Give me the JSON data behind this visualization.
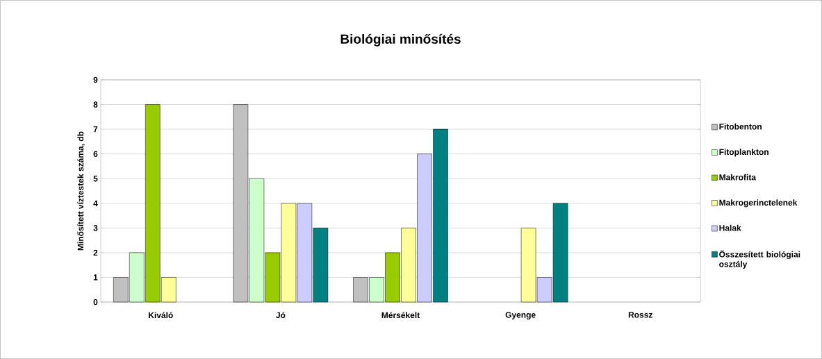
{
  "chart_data": {
    "type": "bar",
    "title": "Biológiai minősítés",
    "ylabel": "Minősített víztestek száma, db",
    "categories": [
      "Kiváló",
      "Jó",
      "Mérsékelt",
      "Gyenge",
      "Rossz"
    ],
    "series": [
      {
        "name": "Fitobenton",
        "color": "#c0c0c0",
        "values": [
          1,
          8,
          1,
          null,
          null
        ]
      },
      {
        "name": "Fitoplankton",
        "color": "#ccffcc",
        "values": [
          2,
          5,
          1,
          null,
          null
        ]
      },
      {
        "name": "Makrofita",
        "color": "#99cc00",
        "values": [
          8,
          2,
          2,
          null,
          null
        ]
      },
      {
        "name": "Makrogerinctelenek",
        "color": "#ffff99",
        "values": [
          1,
          4,
          3,
          3,
          null
        ]
      },
      {
        "name": "Halak",
        "color": "#ccccff",
        "values": [
          null,
          4,
          6,
          1,
          null
        ]
      },
      {
        "name": "Összesített biológiai osztály",
        "color": "#008080",
        "values": [
          null,
          3,
          7,
          4,
          null
        ]
      }
    ],
    "ylim": [
      0,
      9
    ],
    "yticks": [
      0,
      1,
      2,
      3,
      4,
      5,
      6,
      7,
      8,
      9
    ],
    "grid": "y",
    "legend": "right"
  }
}
